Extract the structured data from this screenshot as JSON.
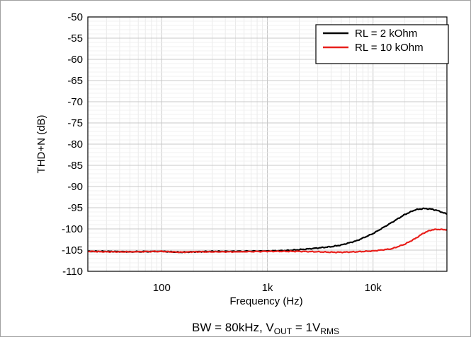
{
  "chart_data": {
    "type": "line",
    "xlabel": "Frequency (Hz)",
    "ylabel": "THD+N (dB)",
    "x_scale": "log",
    "xlim": [
      20,
      50000
    ],
    "ylim": [
      -110,
      -50
    ],
    "x_ticks": [
      100,
      1000,
      10000
    ],
    "x_tick_labels": [
      "100",
      "1k",
      "10k"
    ],
    "y_ticks": [
      -50,
      -55,
      -60,
      -65,
      -70,
      -75,
      -80,
      -85,
      -90,
      -95,
      -100,
      -105,
      -110
    ],
    "y_tick_labels": [
      "-50",
      "-55",
      "-60",
      "-65",
      "-70",
      "-75",
      "-80",
      "-85",
      "-90",
      "-95",
      "-100",
      "-105",
      "-110"
    ],
    "grid": true,
    "legend_position": "top-right",
    "caption": {
      "prefix": "BW = 80kHz, V",
      "sub1": "OUT",
      "middle": " = 1V",
      "sub2": "RMS"
    },
    "series": [
      {
        "name": "RL = 2 kOhm",
        "color": "#000000",
        "x": [
          20,
          30,
          50,
          100,
          150,
          200,
          300,
          500,
          1000,
          1500,
          2000,
          3000,
          4000,
          5000,
          7000,
          10000,
          15000,
          20000,
          25000,
          30000,
          35000,
          40000,
          50000
        ],
        "y": [
          -105.3,
          -105.3,
          -105.4,
          -105.3,
          -105.5,
          -105.4,
          -105.3,
          -105.3,
          -105.2,
          -105.1,
          -104.9,
          -104.5,
          -104.2,
          -103.8,
          -102.8,
          -101.1,
          -98.5,
          -96.6,
          -95.5,
          -95.2,
          -95.3,
          -95.6,
          -96.5
        ]
      },
      {
        "name": "RL = 10 kOhm",
        "color": "#e8201c",
        "x": [
          20,
          30,
          50,
          100,
          150,
          200,
          300,
          500,
          1000,
          1500,
          2000,
          3000,
          4000,
          5000,
          7000,
          10000,
          15000,
          20000,
          25000,
          30000,
          35000,
          40000,
          50000
        ],
        "y": [
          -105.3,
          -105.4,
          -105.4,
          -105.3,
          -105.5,
          -105.4,
          -105.4,
          -105.4,
          -105.3,
          -105.3,
          -105.3,
          -105.4,
          -105.5,
          -105.5,
          -105.4,
          -105.2,
          -104.7,
          -103.6,
          -102.3,
          -101.0,
          -100.3,
          -100.1,
          -100.2
        ]
      }
    ]
  }
}
